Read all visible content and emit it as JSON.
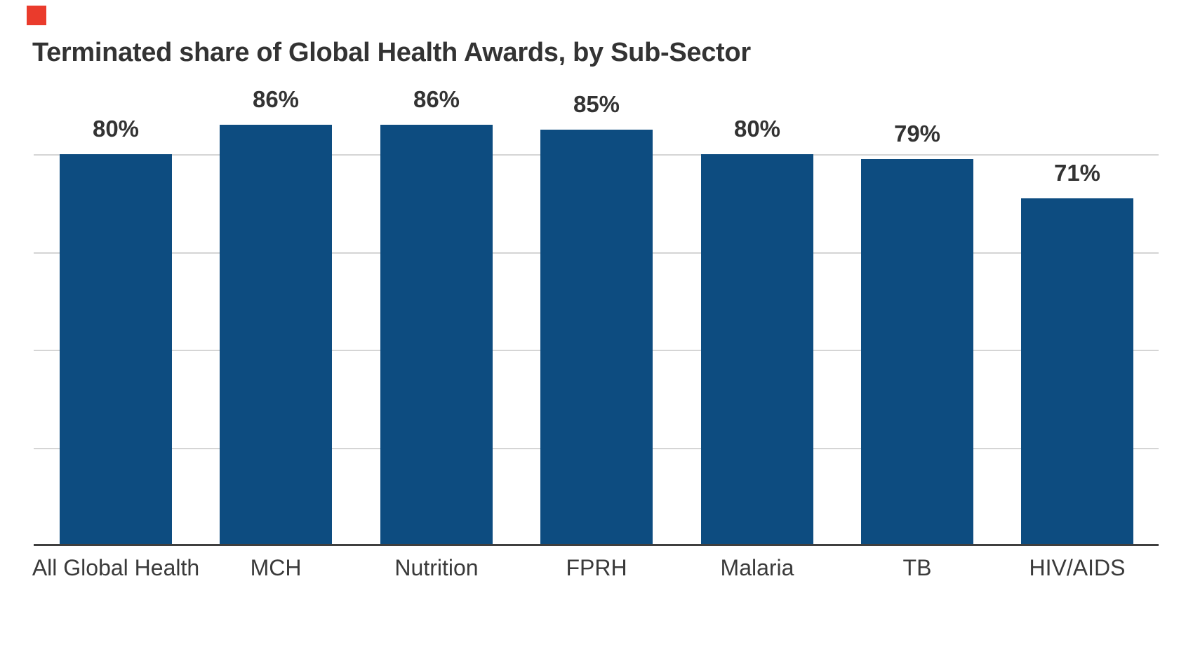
{
  "logo": {
    "name": "red-square-brand-mark",
    "color": "#ea3b2c"
  },
  "chart_data": {
    "type": "bar",
    "title": "Terminated share of Global Health Awards, by Sub-Sector",
    "categories": [
      "All Global Health",
      "MCH",
      "Nutrition",
      "FPRH",
      "Malaria",
      "TB",
      "HIV/AIDS"
    ],
    "values": [
      80,
      86,
      86,
      85,
      80,
      79,
      71
    ],
    "value_labels": [
      "80%",
      "86%",
      "86%",
      "85%",
      "80%",
      "79%",
      "71%"
    ],
    "unit": "%",
    "ylim": [
      0,
      100
    ],
    "gridlines_pct": [
      20,
      40,
      60,
      80
    ],
    "grid": "horizontal, light gray, no y-axis tick labels",
    "legend": "none",
    "xlabel": "",
    "ylabel": "",
    "colors": {
      "bar": "#0d4c80",
      "title": "#333333",
      "value_label": "#333333",
      "category_label": "#3a3a3a",
      "axis_line": "#3f3f3f",
      "gridline": "#d5d5d5",
      "background": "#ffffff"
    }
  }
}
